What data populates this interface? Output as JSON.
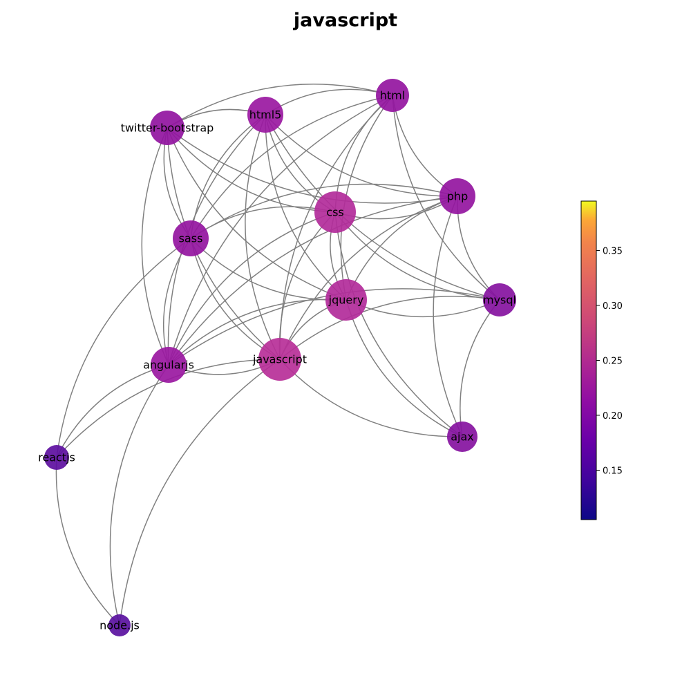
{
  "title": "javascript",
  "colorbar": {
    "ticks": [
      "0.15",
      "0.20",
      "0.25",
      "0.30",
      "0.35"
    ],
    "tick_values": [
      0.15,
      0.2,
      0.25,
      0.3,
      0.35
    ],
    "min": 0.105,
    "max": 0.395,
    "colormap": "plasma"
  },
  "nodes": [
    {
      "id": "html",
      "label": "html",
      "value": 0.185,
      "color": "#9415a0"
    },
    {
      "id": "html5",
      "label": "html5",
      "value": 0.19,
      "color": "#9a18a1"
    },
    {
      "id": "twitter-bootstrap",
      "label": "twitter-bootstrap",
      "value": 0.18,
      "color": "#9113a0"
    },
    {
      "id": "css",
      "label": "css",
      "value": 0.215,
      "color": "#b22b9a"
    },
    {
      "id": "php",
      "label": "php",
      "value": 0.185,
      "color": "#9415a0"
    },
    {
      "id": "sass",
      "label": "sass",
      "value": 0.185,
      "color": "#9415a0"
    },
    {
      "id": "jquery",
      "label": "jquery",
      "value": 0.215,
      "color": "#b22b9a"
    },
    {
      "id": "mysql",
      "label": "mysql",
      "value": 0.17,
      "color": "#8512a0"
    },
    {
      "id": "angularjs",
      "label": "angularjs",
      "value": 0.19,
      "color": "#9a18a1"
    },
    {
      "id": "javascript",
      "label": "javascript",
      "value": 0.225,
      "color": "#b72f98"
    },
    {
      "id": "ajax",
      "label": "ajax",
      "value": 0.17,
      "color": "#8512a0"
    },
    {
      "id": "reactjs",
      "label": "reactjs",
      "value": 0.145,
      "color": "#5d0fa0"
    },
    {
      "id": "node.js",
      "label": "node.js",
      "value": 0.14,
      "color": "#5a11a0"
    }
  ],
  "edges": [
    [
      "html",
      "html5"
    ],
    [
      "html",
      "css"
    ],
    [
      "html",
      "php"
    ],
    [
      "html",
      "jquery"
    ],
    [
      "html",
      "mysql"
    ],
    [
      "html",
      "javascript"
    ],
    [
      "html",
      "sass"
    ],
    [
      "html",
      "angularjs"
    ],
    [
      "html",
      "twitter-bootstrap"
    ],
    [
      "html5",
      "css"
    ],
    [
      "html5",
      "javascript"
    ],
    [
      "html5",
      "jquery"
    ],
    [
      "html5",
      "twitter-bootstrap"
    ],
    [
      "html5",
      "sass"
    ],
    [
      "html5",
      "angularjs"
    ],
    [
      "html5",
      "php"
    ],
    [
      "html5",
      "mysql"
    ],
    [
      "twitter-bootstrap",
      "css"
    ],
    [
      "twitter-bootstrap",
      "jquery"
    ],
    [
      "twitter-bootstrap",
      "sass"
    ],
    [
      "twitter-bootstrap",
      "angularjs"
    ],
    [
      "twitter-bootstrap",
      "javascript"
    ],
    [
      "twitter-bootstrap",
      "php"
    ],
    [
      "css",
      "php"
    ],
    [
      "css",
      "sass"
    ],
    [
      "css",
      "jquery"
    ],
    [
      "css",
      "mysql"
    ],
    [
      "css",
      "javascript"
    ],
    [
      "css",
      "angularjs"
    ],
    [
      "css",
      "ajax"
    ],
    [
      "php",
      "mysql"
    ],
    [
      "php",
      "jquery"
    ],
    [
      "php",
      "javascript"
    ],
    [
      "php",
      "ajax"
    ],
    [
      "php",
      "sass"
    ],
    [
      "php",
      "angularjs"
    ],
    [
      "sass",
      "jquery"
    ],
    [
      "sass",
      "javascript"
    ],
    [
      "sass",
      "angularjs"
    ],
    [
      "sass",
      "reactjs"
    ],
    [
      "jquery",
      "mysql"
    ],
    [
      "jquery",
      "javascript"
    ],
    [
      "jquery",
      "ajax"
    ],
    [
      "jquery",
      "angularjs"
    ],
    [
      "mysql",
      "javascript"
    ],
    [
      "mysql",
      "ajax"
    ],
    [
      "mysql",
      "angularjs"
    ],
    [
      "angularjs",
      "javascript"
    ],
    [
      "angularjs",
      "reactjs"
    ],
    [
      "angularjs",
      "node.js"
    ],
    [
      "javascript",
      "ajax"
    ],
    [
      "javascript",
      "reactjs"
    ],
    [
      "javascript",
      "node.js"
    ],
    [
      "reactjs",
      "node.js"
    ]
  ]
}
